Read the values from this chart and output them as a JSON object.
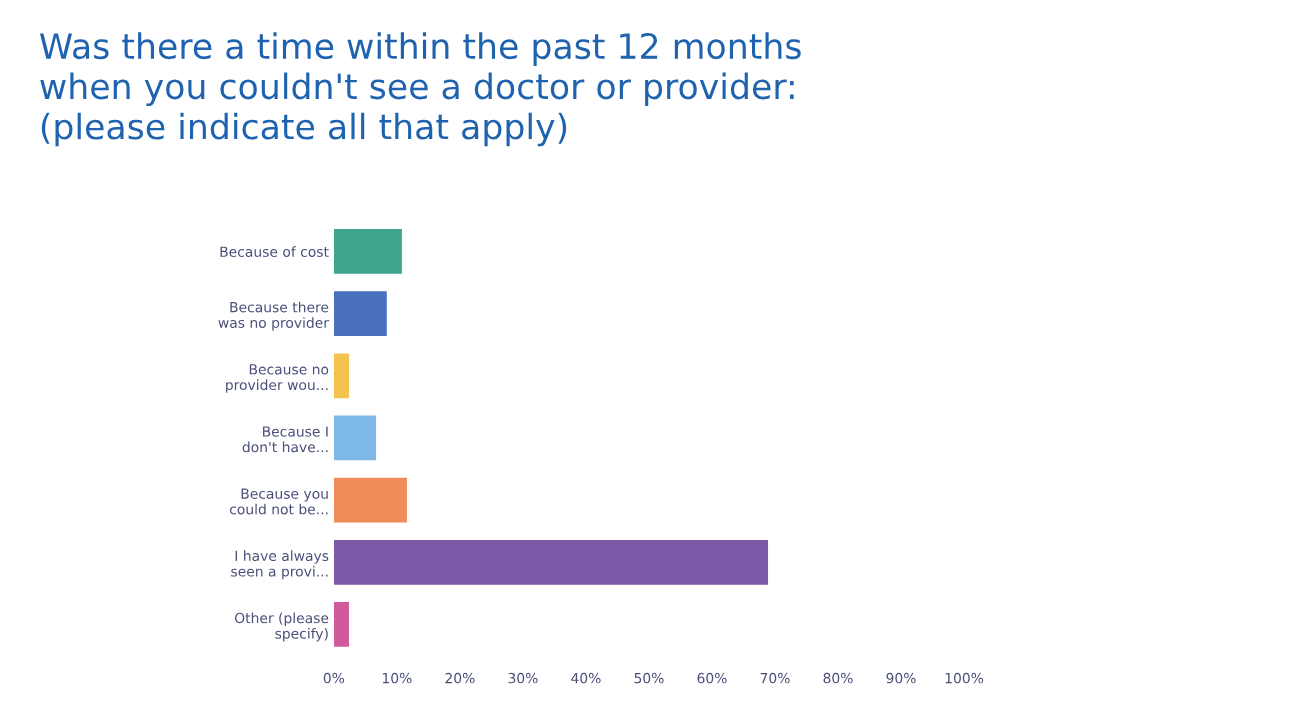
{
  "chart_data": {
    "type": "bar",
    "orientation": "horizontal",
    "title": "Was there a time within the past 12 months\nwhen you couldn't see a doctor or provider:\n(please indicate all that apply)",
    "categories": [
      "Because of cost",
      "Because there\nwas no provider",
      "Because no\nprovider wou...",
      "Because I\ndon't have...",
      "Because you\ncould not be...",
      "I have always\nseen a provi...",
      "Other (please\nspecify)"
    ],
    "values": [
      10.8,
      8.4,
      2.4,
      6.7,
      11.6,
      68.9,
      2.4
    ],
    "colors": [
      "#3fa58c",
      "#4a6fbf",
      "#f3c24f",
      "#7db8e8",
      "#ef8c5a",
      "#7d59a8",
      "#d05a9a"
    ],
    "xlim": [
      0,
      100
    ],
    "xticks": [
      {
        "value": 0,
        "label": "0%"
      },
      {
        "value": 10,
        "label": "10%"
      },
      {
        "value": 20,
        "label": "20%"
      },
      {
        "value": 30,
        "label": "30%"
      },
      {
        "value": 40,
        "label": "40%"
      },
      {
        "value": 50,
        "label": "50%"
      },
      {
        "value": 60,
        "label": "60%"
      },
      {
        "value": 70,
        "label": "70%"
      },
      {
        "value": 80,
        "label": "80%"
      },
      {
        "value": 90,
        "label": "90%"
      },
      {
        "value": 100,
        "label": "100%"
      }
    ],
    "grid": false
  }
}
